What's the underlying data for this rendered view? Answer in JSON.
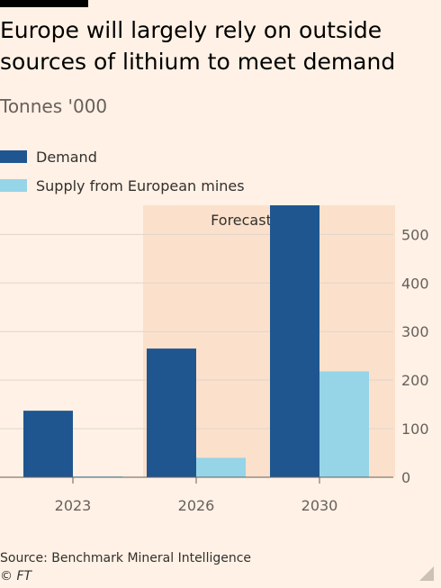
{
  "header": {
    "title": "Europe will largely rely on outside sources of lithium to meet demand",
    "subtitle": "Tonnes '000"
  },
  "legend": [
    {
      "label": "Demand",
      "color": "#1f5690"
    },
    {
      "label": "Supply from European mines",
      "color": "#96d4e8"
    }
  ],
  "footer": {
    "source": "Source: Benchmark Mineral Intelligence",
    "copyright": "© FT"
  },
  "chart_data": {
    "type": "bar",
    "categories": [
      "2023",
      "2026",
      "2030"
    ],
    "series": [
      {
        "name": "Demand",
        "values": [
          137,
          265,
          560
        ],
        "color": "#1f5690"
      },
      {
        "name": "Supply from European mines",
        "values": [
          2,
          40,
          218
        ],
        "color": "#96d4e8"
      }
    ],
    "ylim": [
      0,
      560
    ],
    "yticks": [
      0,
      100,
      200,
      300,
      400,
      500
    ],
    "y_axis_position": "right",
    "grid": true,
    "forecast_label": "Forecast",
    "forecast_shading_color": "#fbe1cc"
  }
}
